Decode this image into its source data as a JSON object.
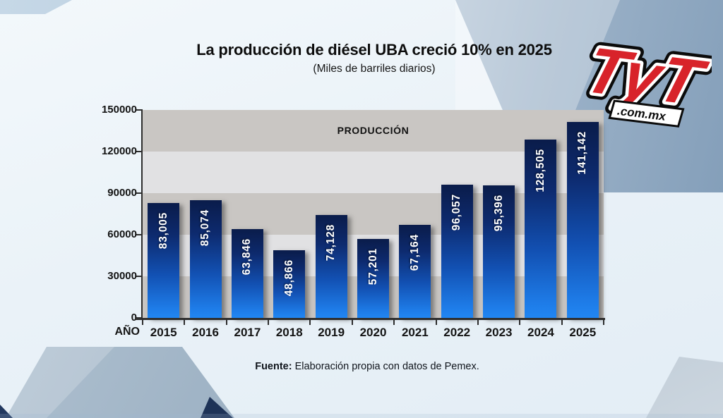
{
  "header": {
    "title": "La producción de diésel UBA creció 10% en 2025",
    "subtitle": "(Miles de barriles diarios)"
  },
  "logo": {
    "text": "TyT",
    "domain": ".com.mx",
    "color": "#d8232a"
  },
  "chart_data": {
    "type": "bar",
    "title": "La producción de diésel UBA creció 10% en 2025",
    "subtitle": "(Miles de barriles diarios)",
    "inner_label": "PRODUCCIÓN",
    "xlabel": "AÑO",
    "categories": [
      "2015",
      "2016",
      "2017",
      "2018",
      "2019",
      "2020",
      "2021",
      "2022",
      "2023",
      "2024",
      "2025"
    ],
    "values": [
      83005,
      85074,
      63846,
      48866,
      74128,
      57201,
      67164,
      96057,
      95396,
      128505,
      141142
    ],
    "value_labels": [
      "83,005",
      "85,074",
      "63,846",
      "48,866",
      "74,128",
      "57,201",
      "67,164",
      "96,057",
      "95,396",
      "128,505",
      "141,142"
    ],
    "y_ticks": [
      0,
      30000,
      60000,
      90000,
      120000,
      150000
    ],
    "ylim": [
      0,
      150000
    ],
    "legend": "none",
    "grid": "horizontal-bands",
    "band_colors": [
      "#c9c6c3",
      "#e1e1e3"
    ],
    "bar_color_top": "#0a1c4a",
    "bar_color_bottom": "#1e7ce8"
  },
  "footer": {
    "source_label": "Fuente:",
    "source_text": " Elaboración propia con datos de Pemex."
  }
}
